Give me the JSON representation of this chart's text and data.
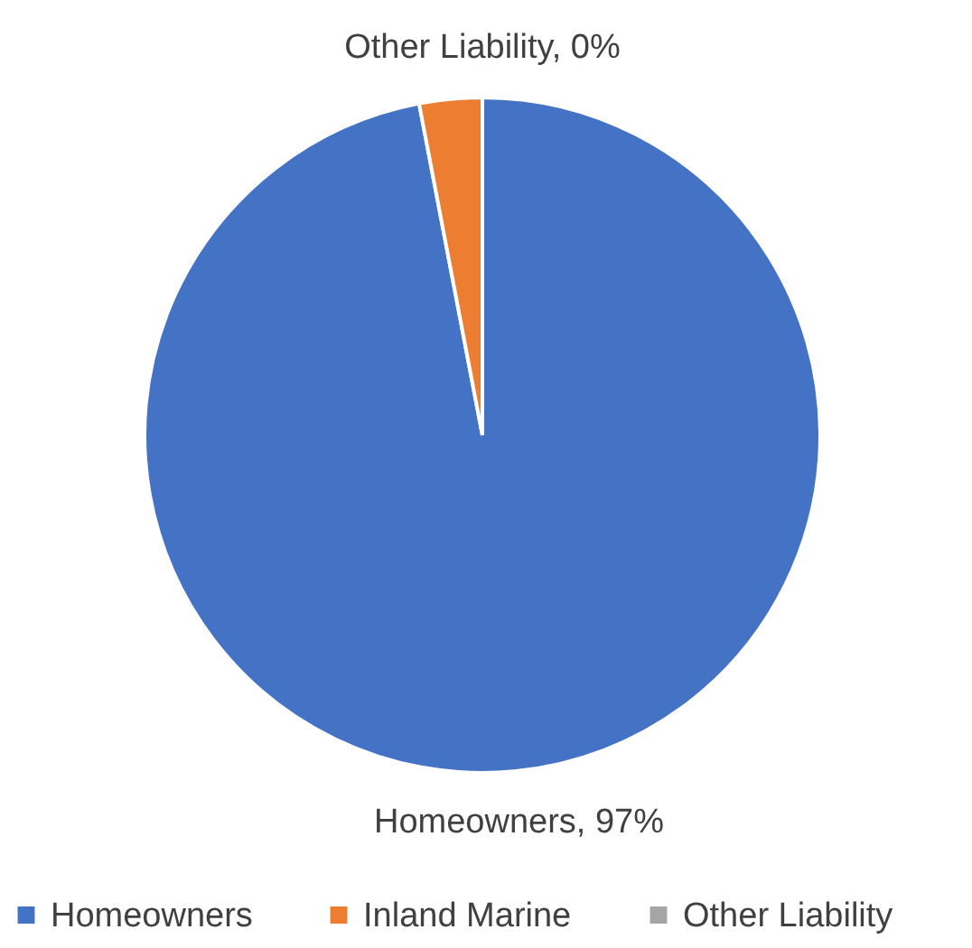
{
  "chart_data": {
    "type": "pie",
    "categories": [
      "Homeowners",
      "Inland Marine",
      "Other Liability"
    ],
    "values": [
      97,
      3,
      0
    ],
    "colors": [
      "#4472c4",
      "#ed7d31",
      "#a5a5a5"
    ],
    "value_labels": [
      "Homeowners, 97%",
      null,
      "Other Liability, 0%"
    ],
    "legend": "bottom"
  }
}
